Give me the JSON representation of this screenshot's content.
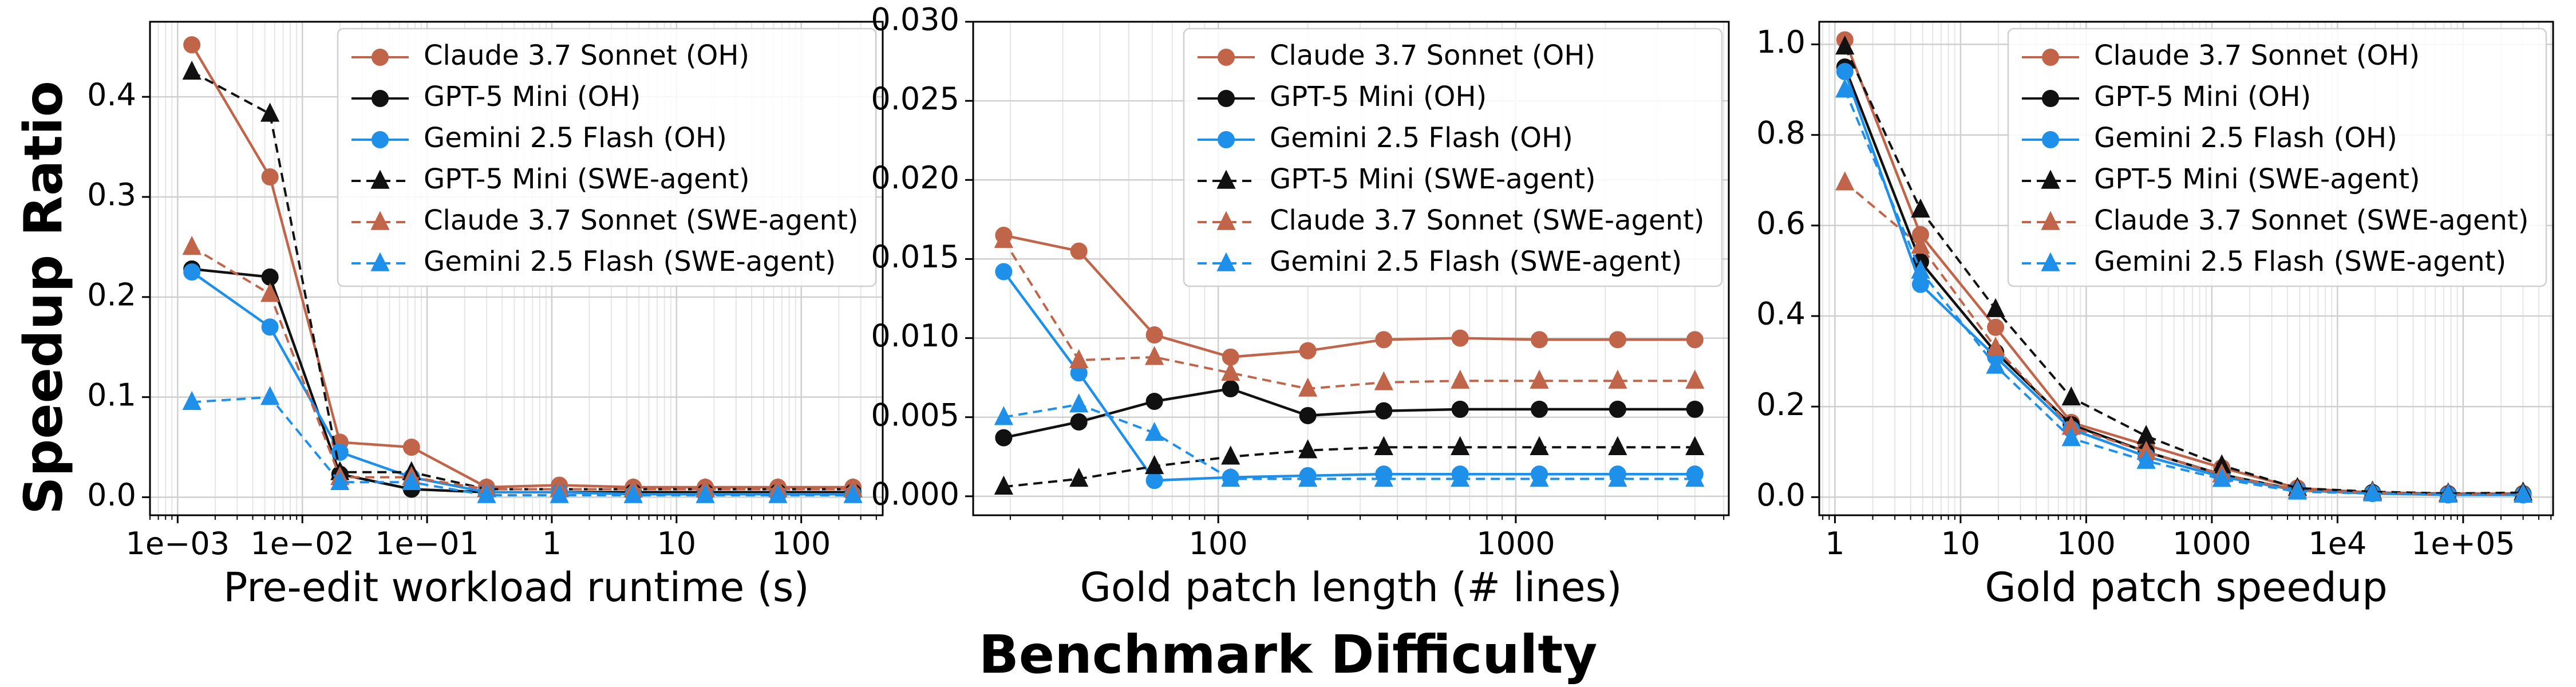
{
  "figure": {
    "ylabel": "Speedup Ratio",
    "xlabel": "Benchmark Difficulty"
  },
  "series_styles": [
    {
      "name": "Claude 3.7 Sonnet (OH)",
      "color": "#c0654a",
      "marker": "circle",
      "dash": false
    },
    {
      "name": "GPT-5 Mini (OH)",
      "color": "#111111",
      "marker": "circle",
      "dash": false
    },
    {
      "name": "Gemini 2.5 Flash (OH)",
      "color": "#1e90ea",
      "marker": "circle",
      "dash": false
    },
    {
      "name": "GPT-5 Mini (SWE-agent)",
      "color": "#111111",
      "marker": "triangle",
      "dash": true
    },
    {
      "name": "Claude 3.7 Sonnet (SWE-agent)",
      "color": "#c0654a",
      "marker": "triangle",
      "dash": true
    },
    {
      "name": "Gemini 2.5 Flash (SWE-agent)",
      "color": "#1e90ea",
      "marker": "triangle",
      "dash": true
    }
  ],
  "chart_data": [
    {
      "type": "line",
      "xlabel": "Pre-edit workload runtime (s)",
      "ylabel": "Speedup Ratio",
      "xscale": "log",
      "xlim": [
        0.0006,
        450
      ],
      "ylim": [
        -0.018,
        0.475
      ],
      "xticks": [
        {
          "v": 0.001,
          "label": "1e−03"
        },
        {
          "v": 0.01,
          "label": "1e−02"
        },
        {
          "v": 0.1,
          "label": "1e−01"
        },
        {
          "v": 1,
          "label": "1"
        },
        {
          "v": 10,
          "label": "10"
        },
        {
          "v": 100,
          "label": "100"
        }
      ],
      "yticks": [
        {
          "v": 0,
          "label": "0.0"
        },
        {
          "v": 0.1,
          "label": "0.1"
        },
        {
          "v": 0.2,
          "label": "0.2"
        },
        {
          "v": 0.3,
          "label": "0.3"
        },
        {
          "v": 0.4,
          "label": "0.4"
        }
      ],
      "grid": true,
      "legend": "top-right",
      "x": [
        0.0013,
        0.0055,
        0.02,
        0.075,
        0.3,
        1.15,
        4.5,
        17,
        65,
        260
      ],
      "series": [
        {
          "name": "Claude 3.7 Sonnet (OH)",
          "values": [
            0.452,
            0.32,
            0.055,
            0.05,
            0.01,
            0.012,
            0.01,
            0.01,
            0.01,
            0.01
          ]
        },
        {
          "name": "GPT-5 Mini (OH)",
          "values": [
            0.228,
            0.22,
            0.023,
            0.008,
            0.005,
            0.005,
            0.005,
            0.005,
            0.005,
            0.005
          ]
        },
        {
          "name": "Gemini 2.5 Flash (OH)",
          "values": [
            0.225,
            0.17,
            0.045,
            0.02,
            0.005,
            0.005,
            0.003,
            0.003,
            0.003,
            0.003
          ]
        },
        {
          "name": "GPT-5 Mini (SWE-agent)",
          "values": [
            0.425,
            0.383,
            0.025,
            0.025,
            0.008,
            0.008,
            0.008,
            0.008,
            0.008,
            0.008
          ]
        },
        {
          "name": "Claude 3.7 Sonnet (SWE-agent)",
          "values": [
            0.25,
            0.203,
            0.02,
            0.02,
            0.008,
            0.008,
            0.008,
            0.008,
            0.008,
            0.008
          ]
        },
        {
          "name": "Gemini 2.5 Flash (SWE-agent)",
          "values": [
            0.095,
            0.1,
            0.015,
            0.015,
            0.002,
            0.002,
            0.002,
            0.002,
            0.002,
            0.002
          ]
        }
      ]
    },
    {
      "type": "line",
      "xlabel": "Gold patch length (# lines)",
      "ylabel": "",
      "xscale": "log",
      "xlim": [
        15,
        5200
      ],
      "ylim": [
        -0.0012,
        0.03
      ],
      "xticks": [
        {
          "v": 100,
          "label": "100"
        },
        {
          "v": 1000,
          "label": "1000"
        }
      ],
      "yticks": [
        {
          "v": 0,
          "label": "0.000"
        },
        {
          "v": 0.005,
          "label": "0.005"
        },
        {
          "v": 0.01,
          "label": "0.010"
        },
        {
          "v": 0.015,
          "label": "0.015"
        },
        {
          "v": 0.02,
          "label": "0.020"
        },
        {
          "v": 0.025,
          "label": "0.025"
        },
        {
          "v": 0.03,
          "label": "0.030"
        }
      ],
      "grid": true,
      "legend": "top-right",
      "x": [
        19,
        34,
        61,
        110,
        200,
        360,
        650,
        1200,
        2200,
        4000
      ],
      "series": [
        {
          "name": "Claude 3.7 Sonnet (OH)",
          "values": [
            0.0165,
            0.0155,
            0.0102,
            0.0088,
            0.0092,
            0.0099,
            0.01,
            0.0099,
            0.0099,
            0.0099
          ]
        },
        {
          "name": "GPT-5 Mini (OH)",
          "values": [
            0.0037,
            0.0047,
            0.006,
            0.0068,
            0.0051,
            0.0054,
            0.0055,
            0.0055,
            0.0055,
            0.0055
          ]
        },
        {
          "name": "Gemini 2.5 Flash (OH)",
          "values": [
            0.0142,
            0.0078,
            0.001,
            0.0012,
            0.0013,
            0.0014,
            0.0014,
            0.0014,
            0.0014,
            0.0014
          ]
        },
        {
          "name": "GPT-5 Mini (SWE-agent)",
          "values": [
            0.0006,
            0.0011,
            0.0019,
            0.0025,
            0.0029,
            0.0031,
            0.0031,
            0.0031,
            0.0031,
            0.0031
          ]
        },
        {
          "name": "Claude 3.7 Sonnet (SWE-agent)",
          "values": [
            0.0162,
            0.0086,
            0.0088,
            0.0078,
            0.0068,
            0.0072,
            0.0073,
            0.0073,
            0.0073,
            0.0073
          ]
        },
        {
          "name": "Gemini 2.5 Flash (SWE-agent)",
          "values": [
            0.005,
            0.0058,
            0.004,
            0.0011,
            0.0011,
            0.0011,
            0.0011,
            0.0011,
            0.0011,
            0.0011
          ]
        }
      ]
    },
    {
      "type": "line",
      "xlabel": "Gold patch speedup",
      "ylabel": "",
      "xscale": "log",
      "xlim": [
        0.75,
        520000
      ],
      "ylim": [
        -0.04,
        1.05
      ],
      "xticks": [
        {
          "v": 1,
          "label": "1"
        },
        {
          "v": 10,
          "label": "10"
        },
        {
          "v": 100,
          "label": "100"
        },
        {
          "v": 1000,
          "label": "1000"
        },
        {
          "v": 10000,
          "label": "1e4"
        },
        {
          "v": 100000,
          "label": "1e+05"
        }
      ],
      "yticks": [
        {
          "v": 0,
          "label": "0.0"
        },
        {
          "v": 0.2,
          "label": "0.2"
        },
        {
          "v": 0.4,
          "label": "0.4"
        },
        {
          "v": 0.6,
          "label": "0.6"
        },
        {
          "v": 0.8,
          "label": "0.8"
        },
        {
          "v": 1.0,
          "label": "1.0"
        }
      ],
      "grid": true,
      "legend": "top-right",
      "x": [
        1.2,
        4.8,
        19,
        76,
        300,
        1200,
        4800,
        19000,
        76000,
        300000
      ],
      "series": [
        {
          "name": "Claude 3.7 Sonnet (OH)",
          "values": [
            1.01,
            0.58,
            0.375,
            0.165,
            0.115,
            0.065,
            0.02,
            0.01,
            0.008,
            0.008
          ]
        },
        {
          "name": "GPT-5 Mini (OH)",
          "values": [
            0.95,
            0.52,
            0.32,
            0.16,
            0.1,
            0.05,
            0.015,
            0.01,
            0.006,
            0.006
          ]
        },
        {
          "name": "Gemini 2.5 Flash (OH)",
          "values": [
            0.94,
            0.47,
            0.31,
            0.15,
            0.09,
            0.045,
            0.015,
            0.008,
            0.005,
            0.005
          ]
        },
        {
          "name": "GPT-5 Mini (SWE-agent)",
          "values": [
            0.995,
            0.635,
            0.415,
            0.22,
            0.135,
            0.07,
            0.02,
            0.012,
            0.008,
            0.01
          ]
        },
        {
          "name": "Claude 3.7 Sonnet (SWE-agent)",
          "values": [
            0.695,
            0.555,
            0.33,
            0.155,
            0.1,
            0.05,
            0.015,
            0.01,
            0.006,
            0.006
          ]
        },
        {
          "name": "Gemini 2.5 Flash (SWE-agent)",
          "values": [
            0.9,
            0.5,
            0.29,
            0.13,
            0.08,
            0.04,
            0.012,
            0.008,
            0.005,
            0.005
          ]
        }
      ]
    }
  ]
}
